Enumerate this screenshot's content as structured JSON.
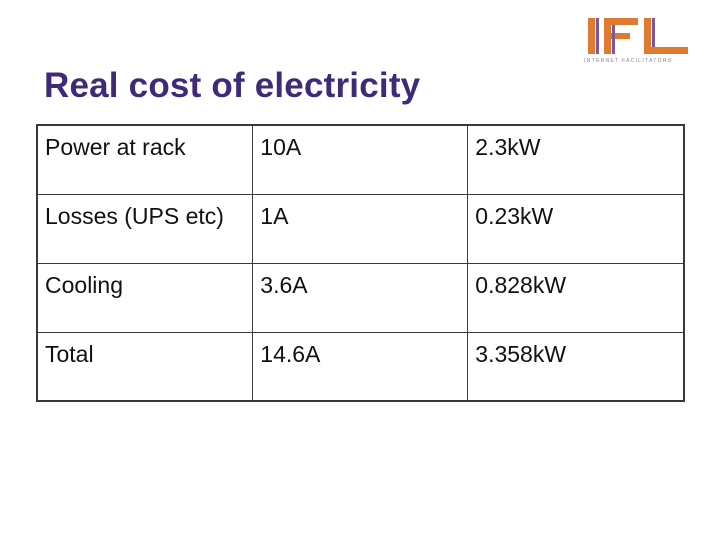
{
  "slide": {
    "title": "Real cost of electricity"
  },
  "logo": {
    "text": "IFL",
    "tagline": "INTERNET FACILITATORS",
    "color": "#e07a30"
  },
  "table": {
    "rows": [
      {
        "label": "Power at rack",
        "current": "10A",
        "power": "2.3kW"
      },
      {
        "label": "Losses (UPS etc)",
        "current": "1A",
        "power": "0.23kW"
      },
      {
        "label": "Cooling",
        "current": "3.6A",
        "power": "0.828kW"
      },
      {
        "label": "Total",
        "current": "14.6A",
        "power": "3.358kW"
      }
    ]
  }
}
